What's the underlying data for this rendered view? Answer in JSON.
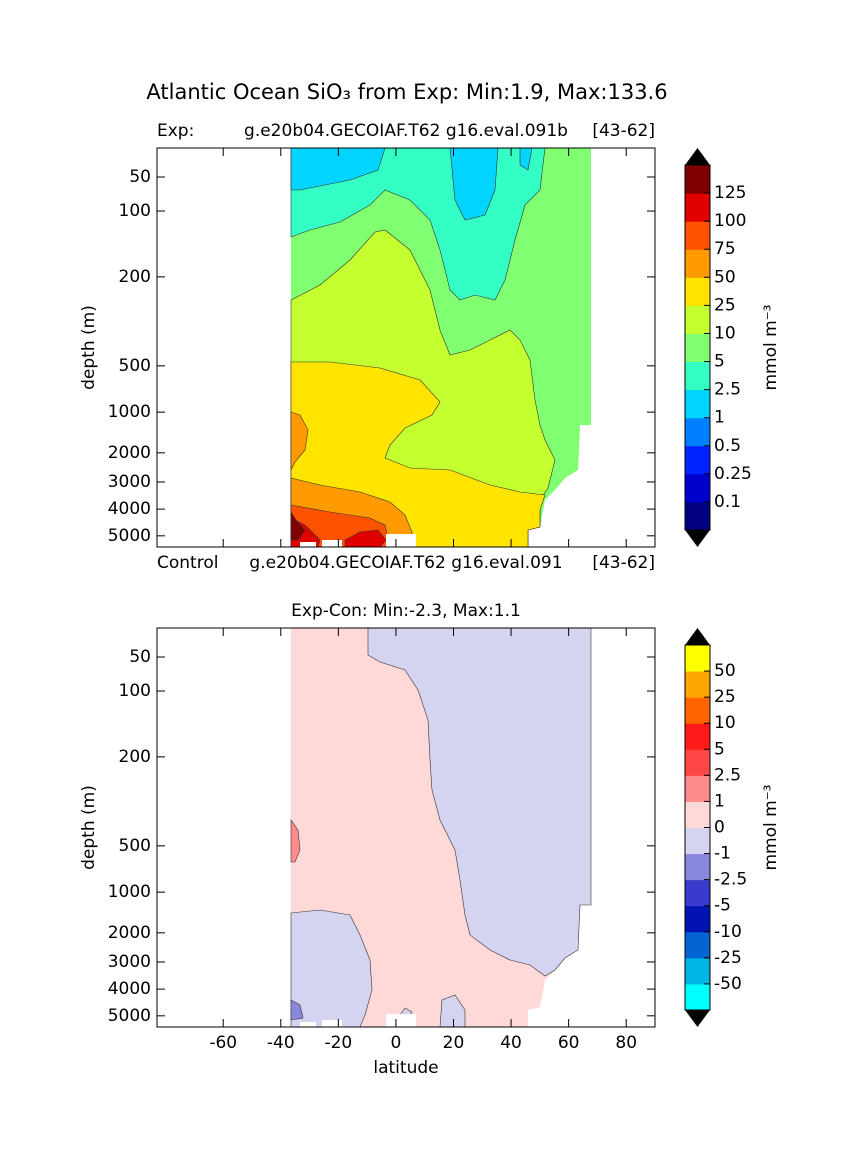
{
  "title": "Atlantic Ocean SiO₃  from Exp: Min:1.9, Max:133.6",
  "control_title": {
    "left": "Control",
    "center": "g.e20b04.GECOIAF.T62 g16.eval.091",
    "right": "[43-62]"
  },
  "chart_data": [
    {
      "type": "contour",
      "title_left": "Exp:",
      "title": "g.e20b04.GECOIAF.T62 g16.eval.091b",
      "title_right": "[43-62]",
      "ylabel": "depth (m)",
      "xlim": [
        -83,
        90
      ],
      "xticks": [
        -60,
        -40,
        -20,
        0,
        20,
        40,
        60,
        80
      ],
      "ylim": [
        0,
        5400
      ],
      "yticks": [
        50,
        100,
        200,
        500,
        1000,
        2000,
        3000,
        4000,
        5000
      ],
      "colorbar": {
        "label": "mmol m⁻³",
        "levels": [
          0.1,
          0.25,
          0.5,
          1,
          2.5,
          5,
          10,
          25,
          50,
          75,
          100,
          125
        ],
        "colors": [
          "#000080",
          "#0000cd",
          "#0022ff",
          "#0080ff",
          "#00d4ff",
          "#33ffc4",
          "#80ff70",
          "#c4ff30",
          "#ffe400",
          "#ff9a00",
          "#ff5200",
          "#e00000",
          "#800000"
        ]
      }
    },
    {
      "type": "contour",
      "title": "Exp-Con: Min:-2.3, Max:1.1",
      "ylabel": "depth (m)",
      "xlabel": "latitude",
      "xlim": [
        -83,
        90
      ],
      "xticks": [
        -60,
        -40,
        -20,
        0,
        20,
        40,
        60,
        80
      ],
      "ylim": [
        0,
        5400
      ],
      "yticks": [
        50,
        100,
        200,
        500,
        1000,
        2000,
        3000,
        4000,
        5000
      ],
      "colorbar": {
        "label": "mmol m⁻³",
        "levels": [
          -50,
          -25,
          -10,
          -5,
          -2.5,
          -1,
          0,
          1,
          2.5,
          5,
          10,
          25,
          50
        ],
        "colors": [
          "#00ffff",
          "#00b4e4",
          "#0064d2",
          "#0014b4",
          "#3a3acc",
          "#8888dd",
          "#d4d4f0",
          "#ffd8d8",
          "#ff8c8c",
          "#ff4646",
          "#ff1a1a",
          "#ff6400",
          "#ffa500",
          "#ffff00"
        ]
      }
    }
  ]
}
